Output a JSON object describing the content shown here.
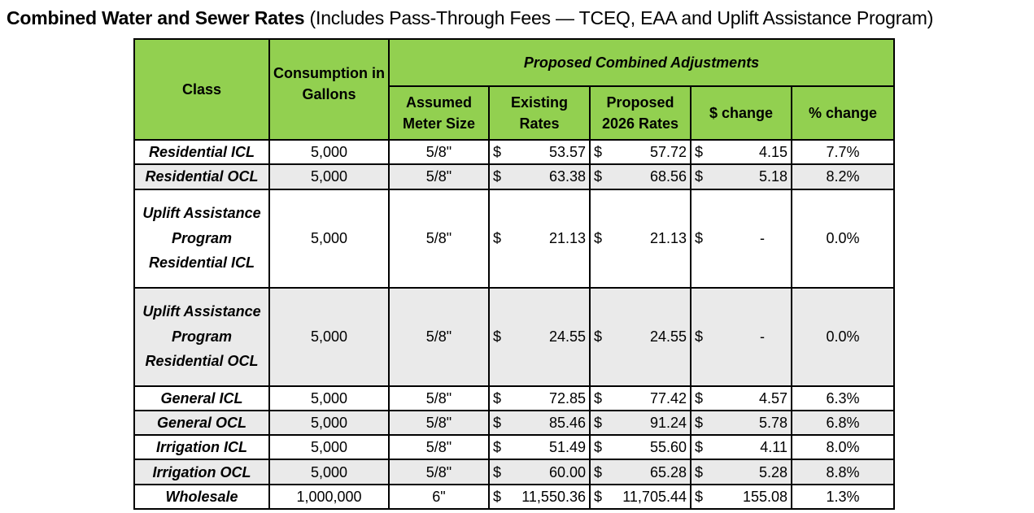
{
  "title": {
    "bold": "Combined Water and Sewer Rates",
    "rest": " (Includes Pass-Through Fees — TCEQ, EAA and Uplift Assistance Program)"
  },
  "headers": {
    "class": "Class",
    "consumption": "Consumption in Gallons",
    "group": "Proposed Combined Adjustments",
    "meter": "Assumed Meter Size",
    "existing": "Existing Rates",
    "proposed": "Proposed 2026 Rates",
    "dollar_change": "$ change",
    "pct_change": "% change"
  },
  "currency": "$",
  "rows": [
    {
      "class": "Residential ICL",
      "consumption": "5,000",
      "meter": "5/8\"",
      "existing": "53.57",
      "proposed": "57.72",
      "change": "4.15",
      "pct": "7.7%"
    },
    {
      "class": "Residential OCL",
      "consumption": "5,000",
      "meter": "5/8\"",
      "existing": "63.38",
      "proposed": "68.56",
      "change": "5.18",
      "pct": "8.2%"
    },
    {
      "class": "Uplift Assistance Program Residential ICL",
      "consumption": "5,000",
      "meter": "5/8\"",
      "existing": "21.13",
      "proposed": "21.13",
      "change": "-",
      "pct": "0.0%"
    },
    {
      "class": "Uplift Assistance Program Residential OCL",
      "consumption": "5,000",
      "meter": "5/8\"",
      "existing": "24.55",
      "proposed": "24.55",
      "change": "-",
      "pct": "0.0%"
    },
    {
      "class": "General ICL",
      "consumption": "5,000",
      "meter": "5/8\"",
      "existing": "72.85",
      "proposed": "77.42",
      "change": "4.57",
      "pct": "6.3%"
    },
    {
      "class": "General OCL",
      "consumption": "5,000",
      "meter": "5/8\"",
      "existing": "85.46",
      "proposed": "91.24",
      "change": "5.78",
      "pct": "6.8%"
    },
    {
      "class": "Irrigation ICL",
      "consumption": "5,000",
      "meter": "5/8\"",
      "existing": "51.49",
      "proposed": "55.60",
      "change": "4.11",
      "pct": "8.0%"
    },
    {
      "class": "Irrigation OCL",
      "consumption": "5,000",
      "meter": "5/8\"",
      "existing": "60.00",
      "proposed": "65.28",
      "change": "5.28",
      "pct": "8.8%"
    },
    {
      "class": "Wholesale",
      "consumption": "1,000,000",
      "meter": "6\"",
      "existing": "11,550.36",
      "proposed": "11,705.44",
      "change": "155.08",
      "pct": "1.3%"
    }
  ]
}
